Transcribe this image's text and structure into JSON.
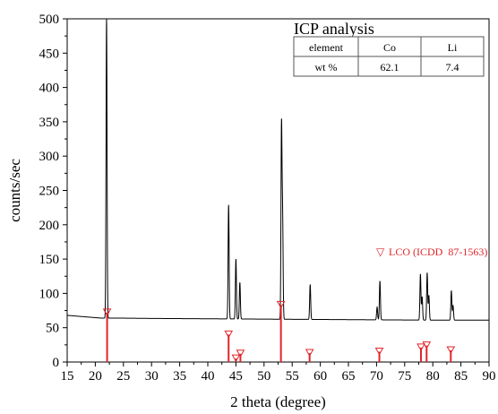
{
  "chart_data": {
    "type": "line",
    "xlabel": "2 theta (degree)",
    "ylabel": "counts/sec",
    "xlim": [
      15,
      90
    ],
    "ylim": [
      0,
      500
    ],
    "xticks": [
      15,
      20,
      25,
      30,
      35,
      40,
      45,
      50,
      55,
      60,
      65,
      70,
      75,
      80,
      85,
      90
    ],
    "yticks": [
      0,
      50,
      100,
      150,
      200,
      250,
      300,
      350,
      400,
      450,
      500
    ],
    "grid": false,
    "series": [
      {
        "name": "",
        "color": "#000000",
        "baseline_points": [
          [
            15,
            68
          ],
          [
            18,
            66
          ],
          [
            21,
            64
          ],
          [
            24,
            64
          ],
          [
            30,
            63.5
          ],
          [
            40,
            63
          ],
          [
            50,
            62.5
          ],
          [
            60,
            62
          ],
          [
            70,
            61.5
          ],
          [
            80,
            61
          ],
          [
            90,
            61
          ]
        ],
        "peaks": [
          {
            "x": 22.0,
            "y": 500
          },
          {
            "x": 43.7,
            "y": 229
          },
          {
            "x": 45.0,
            "y": 150
          },
          {
            "x": 45.7,
            "y": 116
          },
          {
            "x": 53.1,
            "y": 342
          },
          {
            "x": 53.3,
            "y": 205
          },
          {
            "x": 58.2,
            "y": 113
          },
          {
            "x": 70.1,
            "y": 80
          },
          {
            "x": 70.6,
            "y": 118
          },
          {
            "x": 77.8,
            "y": 128
          },
          {
            "x": 78.1,
            "y": 95
          },
          {
            "x": 79.0,
            "y": 130
          },
          {
            "x": 79.3,
            "y": 97
          },
          {
            "x": 83.3,
            "y": 104
          },
          {
            "x": 83.6,
            "y": 82
          }
        ]
      },
      {
        "name": "LCO (ICDD  87-1563)",
        "color": "#e0262b",
        "marker": "triangle-down",
        "type": "stick",
        "x": [
          22.1,
          43.7,
          45.0,
          45.8,
          53.0,
          58.1,
          70.5,
          77.9,
          78.9,
          83.2
        ],
        "y": [
          72,
          40,
          5,
          12,
          83,
          13,
          15,
          21,
          24,
          17
        ]
      }
    ],
    "legend": {
      "label": "LCO (ICDD  87-1563)",
      "symbol": "▽",
      "position": "right"
    },
    "inset_table": {
      "title": "ICP analysis",
      "columns": [
        "element",
        "Co",
        "Li"
      ],
      "rows": [
        [
          "wt %",
          "62.1",
          "7.4"
        ]
      ],
      "position": "top-right"
    }
  }
}
